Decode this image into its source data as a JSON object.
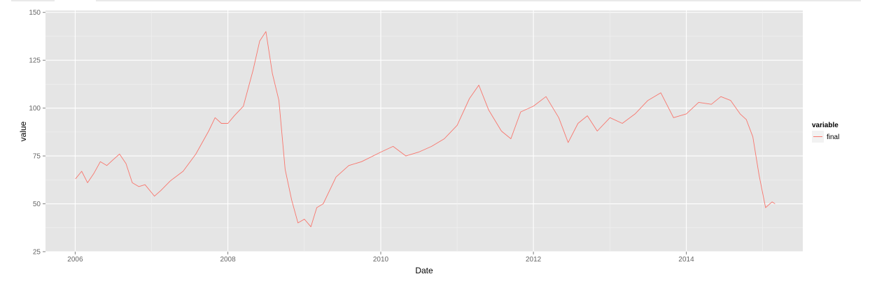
{
  "chart_data": {
    "type": "line",
    "title": "",
    "xlabel": "Date",
    "ylabel": "value",
    "xlim": [
      "2005-08-12",
      "2015-07-12"
    ],
    "ylim": [
      25,
      151
    ],
    "x_ticks": [
      "2006",
      "2008",
      "2010",
      "2012",
      "2014"
    ],
    "y_ticks": [
      "25",
      "50",
      "75",
      "100",
      "125",
      "150"
    ],
    "grid": true,
    "background": "#e5e5e5",
    "line_color": "#f8766d",
    "legend": {
      "title": "variable",
      "position": "right",
      "entries": [
        "final"
      ]
    },
    "series": [
      {
        "name": "final",
        "x": [
          "2006-01-02",
          "2006-02-01",
          "2006-03-01",
          "2006-04-01",
          "2006-05-01",
          "2006-06-01",
          "2006-07-01",
          "2006-08-01",
          "2006-09-01",
          "2006-10-01",
          "2006-11-01",
          "2006-12-01",
          "2007-01-15",
          "2007-02-15",
          "2007-04-01",
          "2007-06-01",
          "2007-08-01",
          "2007-10-01",
          "2007-11-01",
          "2007-12-01",
          "2008-01-01",
          "2008-02-01",
          "2008-03-15",
          "2008-05-01",
          "2008-06-01",
          "2008-07-01",
          "2008-08-01",
          "2008-09-01",
          "2008-10-01",
          "2008-11-01",
          "2008-12-01",
          "2009-01-01",
          "2009-02-01",
          "2009-03-01",
          "2009-04-01",
          "2009-06-01",
          "2009-08-01",
          "2009-10-01",
          "2010-01-01",
          "2010-03-01",
          "2010-05-01",
          "2010-07-01",
          "2010-09-01",
          "2010-11-01",
          "2011-01-01",
          "2011-03-01",
          "2011-04-15",
          "2011-06-01",
          "2011-08-01",
          "2011-09-15",
          "2011-11-01",
          "2012-01-01",
          "2012-03-01",
          "2012-05-01",
          "2012-06-15",
          "2012-08-01",
          "2012-09-15",
          "2012-11-01",
          "2013-01-01",
          "2013-03-01",
          "2013-05-01",
          "2013-07-01",
          "2013-09-01",
          "2013-11-01",
          "2014-01-01",
          "2014-03-01",
          "2014-05-01",
          "2014-06-15",
          "2014-08-01",
          "2014-09-15",
          "2014-10-15",
          "2014-11-15",
          "2014-12-15",
          "2015-01-15",
          "2015-02-15",
          "2015-03-01"
        ],
        "values": [
          63,
          67,
          61,
          66,
          72,
          70,
          73,
          76,
          71,
          61,
          59,
          60,
          54,
          57,
          62,
          67,
          76,
          88,
          95,
          92,
          92,
          96,
          101,
          120,
          135,
          140,
          118,
          104,
          68,
          52,
          40,
          42,
          38,
          48,
          50,
          64,
          70,
          72,
          77,
          80,
          75,
          77,
          80,
          84,
          91,
          105,
          112,
          99,
          88,
          84,
          98,
          101,
          106,
          95,
          82,
          92,
          96,
          88,
          95,
          92,
          97,
          104,
          108,
          95,
          97,
          103,
          102,
          106,
          104,
          97,
          94,
          85,
          65,
          48,
          51,
          50
        ]
      }
    ]
  }
}
